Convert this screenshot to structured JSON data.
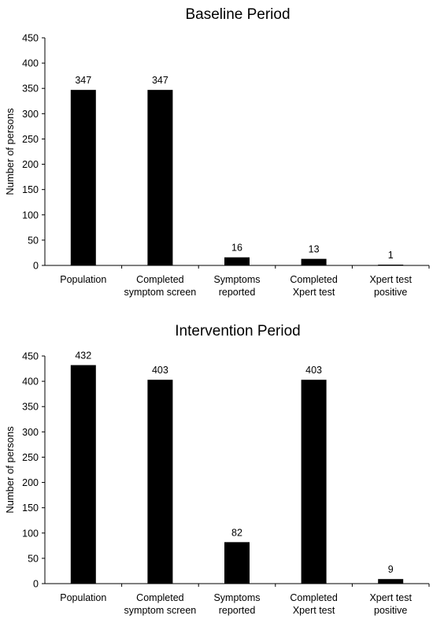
{
  "chart_data": [
    {
      "type": "bar",
      "title": "Baseline Period",
      "ylabel": "Number of persons",
      "xlabel": "",
      "ylim": [
        0,
        450
      ],
      "yticks": [
        0,
        50,
        100,
        150,
        200,
        250,
        300,
        350,
        400,
        450
      ],
      "categories": [
        [
          "Population"
        ],
        [
          "Completed",
          "symptom screen"
        ],
        [
          "Symptoms",
          "reported"
        ],
        [
          "Completed",
          "Xpert test"
        ],
        [
          "Xpert test",
          "positive"
        ]
      ],
      "values": [
        347,
        347,
        16,
        13,
        1
      ],
      "bar_color": "#000000",
      "grid": false,
      "legend": "none"
    },
    {
      "type": "bar",
      "title": "Intervention Period",
      "ylabel": "Number of persons",
      "xlabel": "",
      "ylim": [
        0,
        450
      ],
      "yticks": [
        0,
        50,
        100,
        150,
        200,
        250,
        300,
        350,
        400,
        450
      ],
      "categories": [
        [
          "Population"
        ],
        [
          "Completed",
          "symptom screen"
        ],
        [
          "Symptoms",
          "reported"
        ],
        [
          "Completed",
          "Xpert test"
        ],
        [
          "Xpert test",
          "positive"
        ]
      ],
      "values": [
        432,
        403,
        82,
        403,
        9
      ],
      "bar_color": "#000000",
      "grid": false,
      "legend": "none"
    }
  ]
}
